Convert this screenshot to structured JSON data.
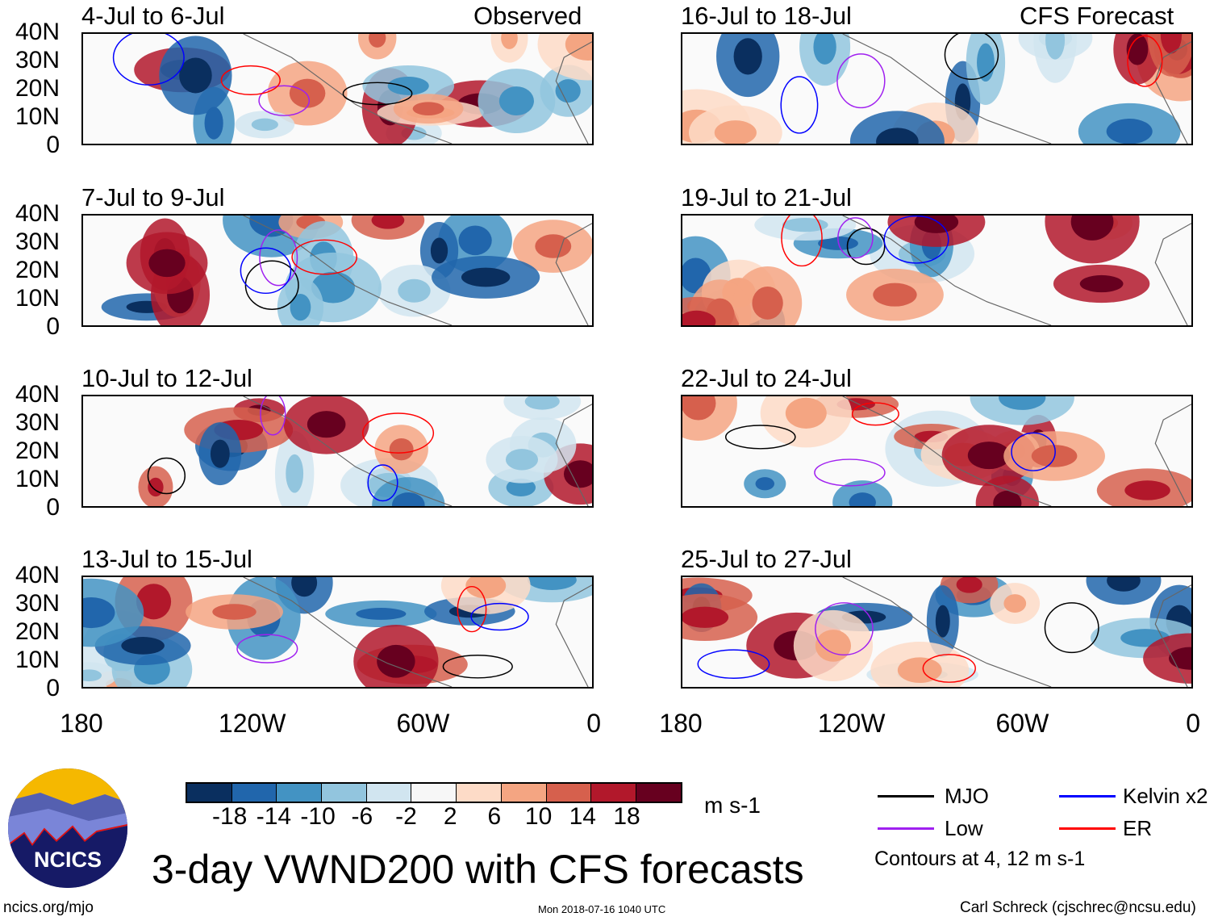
{
  "observed_label": "Observed",
  "forecast_label": "CFS Forecast",
  "panels": [
    {
      "title": "4-Jul to 6-Jul",
      "type": "observed"
    },
    {
      "title": "7-Jul to 9-Jul",
      "type": "observed"
    },
    {
      "title": "10-Jul to 12-Jul",
      "type": "observed"
    },
    {
      "title": "13-Jul to 15-Jul",
      "type": "observed"
    },
    {
      "title": "16-Jul to 18-Jul",
      "type": "forecast"
    },
    {
      "title": "19-Jul to 21-Jul",
      "type": "forecast"
    },
    {
      "title": "22-Jul to 24-Jul",
      "type": "forecast"
    },
    {
      "title": "25-Jul to 27-Jul",
      "type": "forecast"
    }
  ],
  "lat_labels": [
    "40N",
    "30N",
    "20N",
    "10N",
    "0"
  ],
  "lon_labels": [
    "180",
    "120W",
    "60W",
    "0"
  ],
  "colorbar": {
    "colors": [
      "#0a2f5f",
      "#2166ac",
      "#4393c3",
      "#92c5de",
      "#d1e5f0",
      "#f7f7f7",
      "#fddbc7",
      "#f4a582",
      "#d6604d",
      "#b2182b",
      "#67001f"
    ],
    "labels": [
      "-18",
      "-14",
      "-10",
      "-6",
      "-2",
      "2",
      "6",
      "10",
      "14",
      "18"
    ],
    "units": "m s-1"
  },
  "legend": {
    "items": [
      {
        "label": "MJO",
        "color": "#000000"
      },
      {
        "label": "Kelvin x2",
        "color": "#0000ff"
      },
      {
        "label": "Low",
        "color": "#a020f0"
      },
      {
        "label": "ER",
        "color": "#ff0000"
      }
    ],
    "note": "Contours at 4, 12 m s-1"
  },
  "title": "3-day VWND200 with CFS forecasts",
  "logo_text": "NCICS",
  "footer": {
    "left": "ncics.org/mjo",
    "center": "Mon 2018-07-16 1040 UTC",
    "right": "Carl Schreck (cjschrec@ncsu.edu)"
  }
}
